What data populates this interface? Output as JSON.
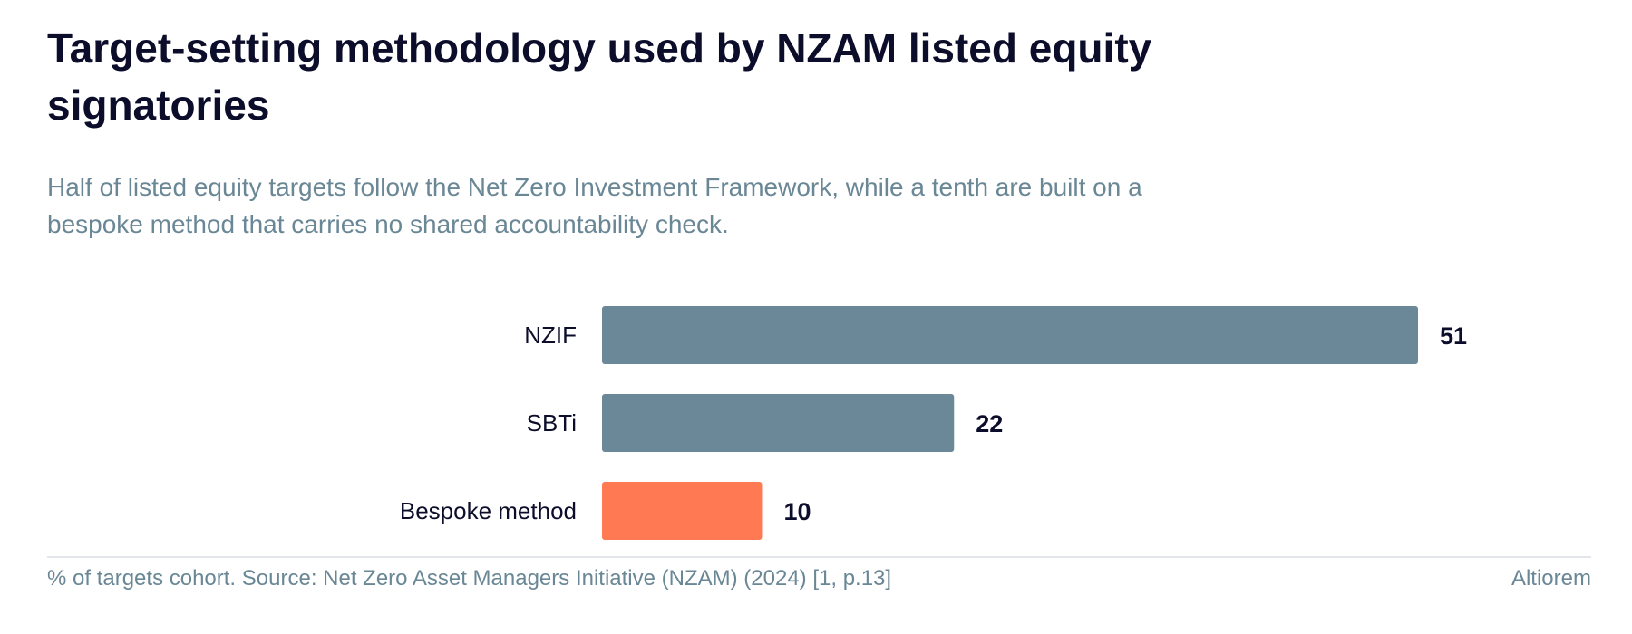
{
  "header": {
    "title": "Target-setting methodology used by NZAM listed equity signatories",
    "subtitle": "Half of listed equity targets follow the Net Zero Investment Framework, while a tenth are built on a bespoke method that carries no shared accountability check."
  },
  "footer": {
    "source": "% of targets cohort. Source: Net Zero Asset Managers Initiative (NZAM) (2024) [1, p.13]",
    "brand": "Altiorem"
  },
  "colors": {
    "default_bar": "#6a8898",
    "highlight_bar": "#ff7a52"
  },
  "chart_data": {
    "type": "bar",
    "orientation": "horizontal",
    "categories": [
      "NZIF",
      "SBTi",
      "Bespoke method"
    ],
    "values": [
      51,
      22,
      10
    ],
    "highlight": [
      "Bespoke method"
    ],
    "unit": "%",
    "xlim": [
      0,
      51
    ],
    "grid": false,
    "legend": "none"
  }
}
